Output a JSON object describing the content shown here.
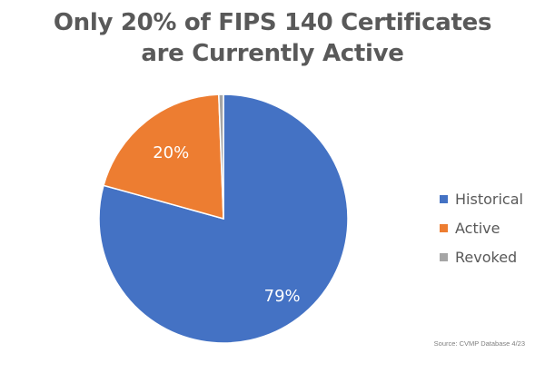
{
  "chart_data": {
    "type": "pie",
    "title_lines": [
      "Only 20% of FIPS 140 Certificates",
      "are Currently Active"
    ],
    "slices": [
      {
        "name": "Historical",
        "value": 79,
        "label": "79%",
        "color": "#4472C4"
      },
      {
        "name": "Active",
        "value": 20,
        "label": "20%",
        "color": "#ED7D31"
      },
      {
        "name": "Revoked",
        "value": 0.6,
        "label": "",
        "color": "#A5A5A5"
      }
    ],
    "legend_position": "right",
    "source": "Source: CVMP Database 4/23"
  }
}
